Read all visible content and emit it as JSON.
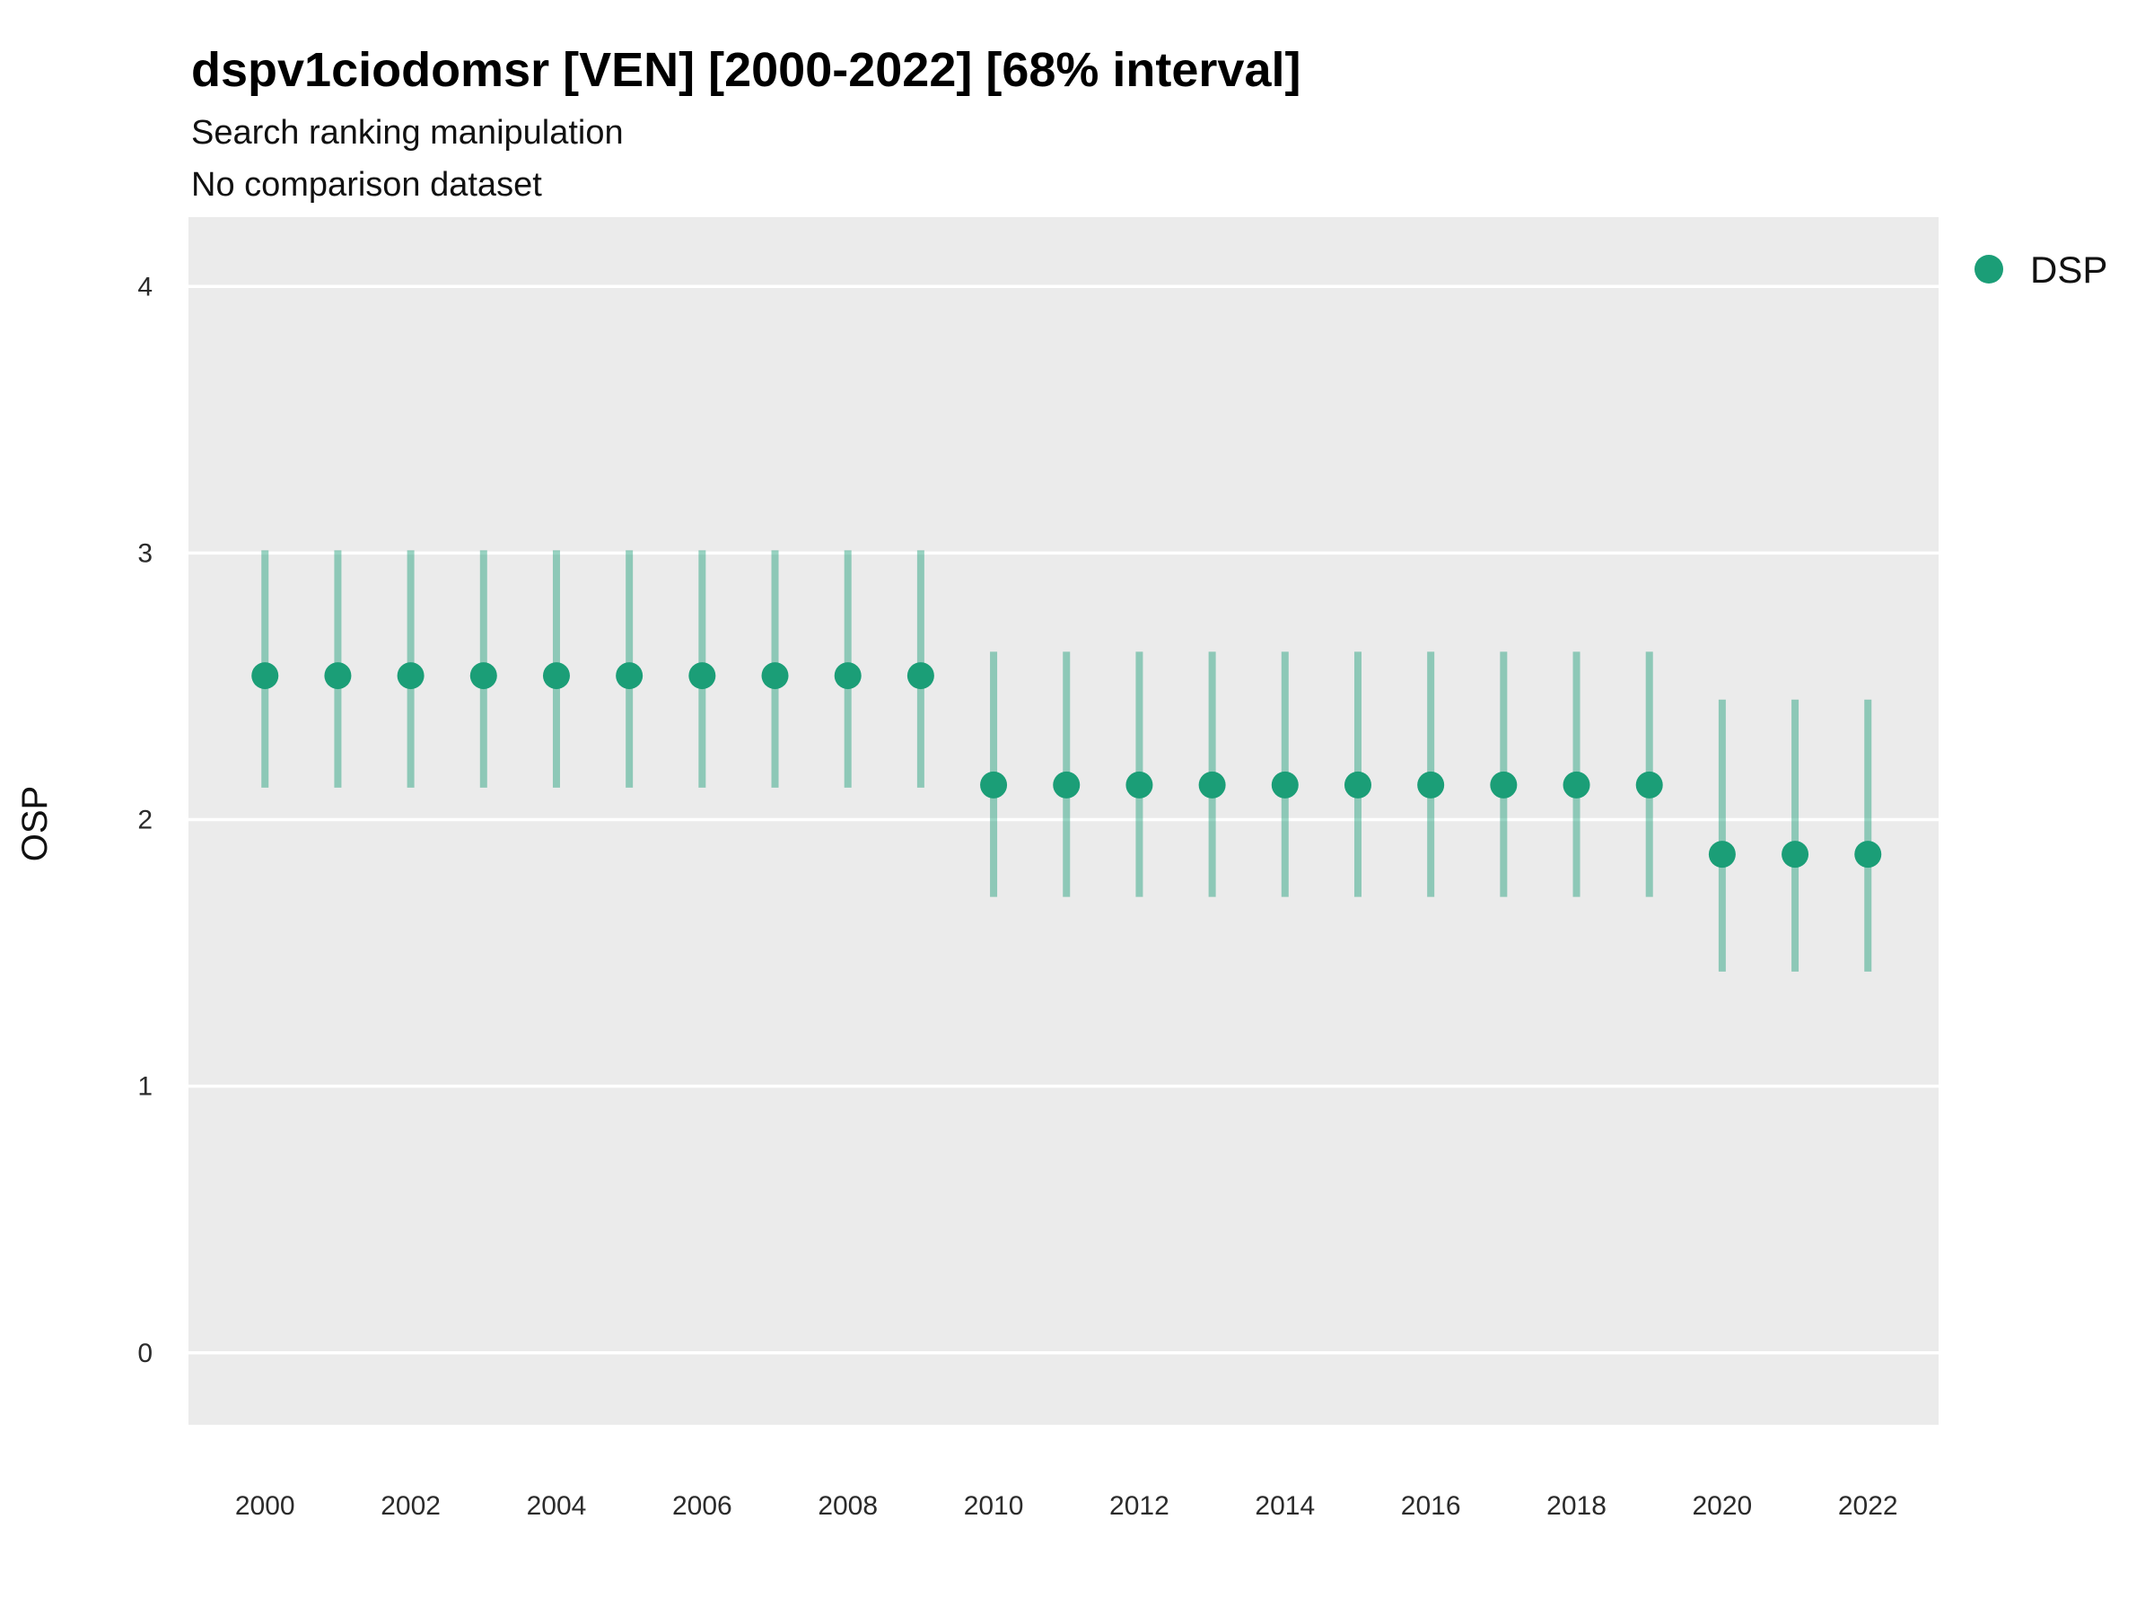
{
  "chart_data": {
    "type": "pointrange",
    "title": "dspv1ciodomsr [VEN] [2000-2022] [68% interval]",
    "subtitle": [
      "Search ranking manipulation",
      "No comparison dataset"
    ],
    "ylabel": "OSP",
    "xlabel": "",
    "legend": {
      "label": "DSP",
      "position": "right"
    },
    "colors": {
      "point": "#1b9e77",
      "interval": "#1b9e77",
      "interval_opacity": 0.45,
      "panel_background": "#ebebeb",
      "gridline": "#ffffff"
    },
    "grid": "major-horizontal",
    "xlim": [
      1998.95,
      2022.97
    ],
    "ylim": [
      -0.27,
      4.26
    ],
    "x_ticks": [
      2000,
      2002,
      2004,
      2006,
      2008,
      2010,
      2012,
      2014,
      2016,
      2018,
      2020,
      2022
    ],
    "y_ticks": [
      0,
      1,
      2,
      3,
      4
    ],
    "series": [
      {
        "name": "DSP",
        "points": [
          {
            "year": 2000,
            "value": 2.54,
            "lower": 2.12,
            "upper": 3.01
          },
          {
            "year": 2001,
            "value": 2.54,
            "lower": 2.12,
            "upper": 3.01
          },
          {
            "year": 2002,
            "value": 2.54,
            "lower": 2.12,
            "upper": 3.01
          },
          {
            "year": 2003,
            "value": 2.54,
            "lower": 2.12,
            "upper": 3.01
          },
          {
            "year": 2004,
            "value": 2.54,
            "lower": 2.12,
            "upper": 3.01
          },
          {
            "year": 2005,
            "value": 2.54,
            "lower": 2.12,
            "upper": 3.01
          },
          {
            "year": 2006,
            "value": 2.54,
            "lower": 2.12,
            "upper": 3.01
          },
          {
            "year": 2007,
            "value": 2.54,
            "lower": 2.12,
            "upper": 3.01
          },
          {
            "year": 2008,
            "value": 2.54,
            "lower": 2.12,
            "upper": 3.01
          },
          {
            "year": 2009,
            "value": 2.54,
            "lower": 2.12,
            "upper": 3.01
          },
          {
            "year": 2010,
            "value": 2.13,
            "lower": 1.71,
            "upper": 2.63
          },
          {
            "year": 2011,
            "value": 2.13,
            "lower": 1.71,
            "upper": 2.63
          },
          {
            "year": 2012,
            "value": 2.13,
            "lower": 1.71,
            "upper": 2.63
          },
          {
            "year": 2013,
            "value": 2.13,
            "lower": 1.71,
            "upper": 2.63
          },
          {
            "year": 2014,
            "value": 2.13,
            "lower": 1.71,
            "upper": 2.63
          },
          {
            "year": 2015,
            "value": 2.13,
            "lower": 1.71,
            "upper": 2.63
          },
          {
            "year": 2016,
            "value": 2.13,
            "lower": 1.71,
            "upper": 2.63
          },
          {
            "year": 2017,
            "value": 2.13,
            "lower": 1.71,
            "upper": 2.63
          },
          {
            "year": 2018,
            "value": 2.13,
            "lower": 1.71,
            "upper": 2.63
          },
          {
            "year": 2019,
            "value": 2.13,
            "lower": 1.71,
            "upper": 2.63
          },
          {
            "year": 2020,
            "value": 1.87,
            "lower": 1.43,
            "upper": 2.45
          },
          {
            "year": 2021,
            "value": 1.87,
            "lower": 1.43,
            "upper": 2.45
          },
          {
            "year": 2022,
            "value": 1.87,
            "lower": 1.43,
            "upper": 2.45
          }
        ]
      }
    ]
  }
}
